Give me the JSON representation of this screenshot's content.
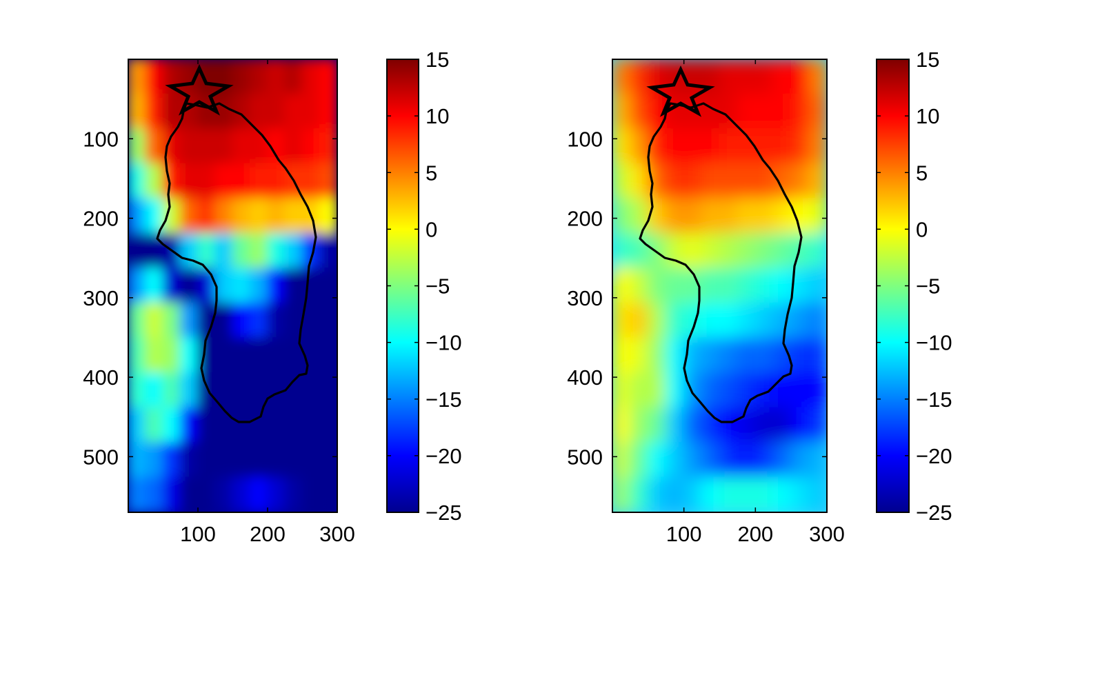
{
  "chart_data": [
    {
      "type": "heatmap",
      "title": "",
      "xlabel": "",
      "ylabel": "",
      "xlim": [
        0,
        300
      ],
      "ylim": [
        570,
        0
      ],
      "x_ticks": [
        100,
        200,
        300
      ],
      "y_ticks": [
        100,
        200,
        300,
        400,
        500
      ],
      "colormap": "jet",
      "colorbar": {
        "clim": [
          -25,
          15
        ],
        "ticks": [
          15,
          10,
          5,
          0,
          -5,
          -10,
          -15,
          -20,
          -25
        ]
      },
      "overlay": {
        "star_marker": [
          103,
          38
        ],
        "outline": "closed black contour"
      },
      "field": [
        [
          4,
          10,
          13,
          14,
          15,
          15,
          14,
          13,
          12,
          13,
          11,
          10
        ],
        [
          3,
          9,
          13,
          13,
          14,
          14,
          13,
          12,
          12,
          11,
          11,
          10
        ],
        [
          -4,
          6,
          11,
          12,
          12,
          12,
          11,
          11,
          10,
          11,
          10,
          9
        ],
        [
          -9,
          -3,
          9,
          11,
          11,
          10,
          10,
          9,
          9,
          8,
          8,
          7
        ],
        [
          -14,
          -10,
          -2,
          6,
          8,
          5,
          3,
          2,
          3,
          2,
          2,
          0
        ],
        [
          -25,
          -25,
          -24,
          -12,
          -8,
          -12,
          -6,
          -4,
          -9,
          -12,
          -18,
          -24
        ],
        [
          -14,
          -10,
          -22,
          -25,
          -22,
          -12,
          -11,
          -13,
          -20,
          -25,
          -25,
          -25
        ],
        [
          -6,
          -2,
          -5,
          -14,
          -25,
          -25,
          -20,
          -18,
          -24,
          -25,
          -25,
          -25
        ],
        [
          -7,
          -3,
          -4,
          -10,
          -25,
          -25,
          -25,
          -25,
          -25,
          -25,
          -25,
          -25
        ],
        [
          -8,
          -10,
          -7,
          -12,
          -25,
          -25,
          -25,
          -25,
          -25,
          -25,
          -25,
          -25
        ],
        [
          -12,
          -7,
          -10,
          -20,
          -25,
          -25,
          -25,
          -25,
          -25,
          -25,
          -25,
          -25
        ],
        [
          -13,
          -14,
          -18,
          -24,
          -25,
          -25,
          -25,
          -25,
          -25,
          -25,
          -25,
          -25
        ],
        [
          -15,
          -16,
          -21,
          -25,
          -25,
          -24,
          -22,
          -20,
          -22,
          -24,
          -25,
          -25
        ]
      ]
    },
    {
      "type": "heatmap",
      "title": "",
      "xlabel": "",
      "ylabel": "",
      "xlim": [
        0,
        300
      ],
      "ylim": [
        570,
        0
      ],
      "x_ticks": [
        100,
        200,
        300
      ],
      "y_ticks": [
        100,
        200,
        300,
        400,
        500
      ],
      "colormap": "jet",
      "colorbar": {
        "clim": [
          -25,
          15
        ],
        "ticks": [
          15,
          10,
          5,
          0,
          -5,
          -10,
          -15,
          -20,
          -25
        ]
      },
      "overlay": {
        "star_marker": [
          103,
          38
        ],
        "outline": "closed black contour"
      },
      "field": [
        [
          5,
          8,
          11,
          12,
          12,
          12,
          11,
          11,
          11,
          10,
          10,
          5
        ],
        [
          3,
          7,
          10,
          11,
          11,
          11,
          11,
          10,
          10,
          10,
          9,
          6
        ],
        [
          1,
          4,
          9,
          10,
          10,
          10,
          9,
          9,
          9,
          9,
          8,
          5
        ],
        [
          -2,
          1,
          6,
          8,
          8,
          7,
          7,
          7,
          7,
          6,
          5,
          3
        ],
        [
          -5,
          -3,
          2,
          4,
          4,
          3,
          3,
          2,
          2,
          1,
          0,
          -1
        ],
        [
          -8,
          -7,
          -5,
          -2,
          -1,
          -2,
          -3,
          -4,
          -5,
          -6,
          -7,
          -8
        ],
        [
          0,
          -2,
          -5,
          -6,
          -6,
          -7,
          -7,
          -8,
          -9,
          -10,
          -11,
          -12
        ],
        [
          1,
          2,
          -3,
          -8,
          -9,
          -10,
          -10,
          -11,
          -12,
          -13,
          -14,
          -15
        ],
        [
          0,
          -1,
          -4,
          -10,
          -13,
          -14,
          -15,
          -16,
          -16,
          -17,
          -18,
          -18
        ],
        [
          -1,
          -3,
          -3,
          -10,
          -14,
          -16,
          -17,
          -18,
          -19,
          -20,
          -20,
          -20
        ],
        [
          0,
          -4,
          -6,
          -12,
          -16,
          -18,
          -20,
          -21,
          -22,
          -22,
          -20,
          -18
        ],
        [
          -2,
          -6,
          -10,
          -12,
          -14,
          -16,
          -18,
          -19,
          -18,
          -16,
          -14,
          -13
        ],
        [
          -4,
          -8,
          -12,
          -13,
          -12,
          -10,
          -9,
          -9,
          -9,
          -10,
          -11,
          -12
        ]
      ]
    }
  ]
}
